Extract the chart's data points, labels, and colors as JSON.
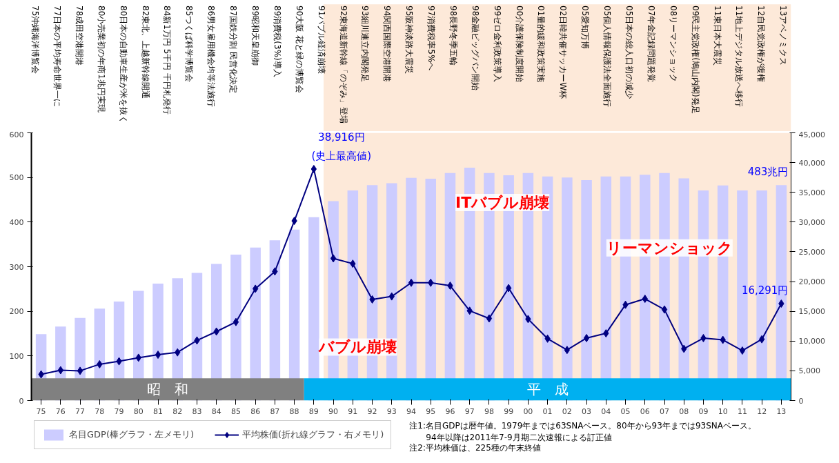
{
  "chart_data": {
    "type": "bar",
    "categories": [
      "75",
      "76",
      "77",
      "78",
      "79",
      "80",
      "81",
      "82",
      "83",
      "84",
      "85",
      "86",
      "87",
      "88",
      "89",
      "90",
      "91",
      "92",
      "93",
      "94",
      "95",
      "96",
      "97",
      "98",
      "99",
      "00",
      "01",
      "02",
      "03",
      "04",
      "05",
      "06",
      "07",
      "08",
      "09",
      "10",
      "11",
      "12",
      "13"
    ],
    "series": [
      {
        "name": "名目GDP(棒グラフ・左メモリ)",
        "color": "#ccccff",
        "values": [
          149,
          166,
          185,
          206,
          222,
          246,
          262,
          274,
          286,
          306,
          327,
          343,
          359,
          383,
          411,
          447,
          471,
          483,
          487,
          499,
          497,
          510,
          522,
          510,
          505,
          510,
          502,
          500,
          494,
          502,
          502,
          506,
          510,
          498,
          471,
          482,
          471,
          471,
          483
        ],
        "value_labels": [
          null,
          null,
          null,
          null,
          null,
          null,
          null,
          null,
          null,
          null,
          null,
          null,
          null,
          null,
          null,
          null,
          null,
          null,
          null,
          null,
          null,
          null,
          null,
          null,
          null,
          null,
          null,
          null,
          null,
          null,
          null,
          null,
          null,
          null,
          null,
          null,
          null,
          null,
          "483兆円"
        ]
      },
      {
        "name": "平均株価(折れ線グラフ・右メモリ)",
        "type": "line",
        "axis": "y2",
        "color": "#000080",
        "values": [
          4400,
          5100,
          5000,
          6100,
          6600,
          7200,
          7700,
          8100,
          10100,
          11600,
          13200,
          18800,
          21700,
          30200,
          38916,
          23900,
          23000,
          17000,
          17500,
          19800,
          19800,
          19300,
          15100,
          13800,
          18900,
          13700,
          10400,
          8500,
          10500,
          11300,
          16100,
          17100,
          15300,
          8700,
          10500,
          10200,
          8400,
          10300,
          16291
        ],
        "value_labels": [
          null,
          null,
          null,
          null,
          null,
          null,
          null,
          null,
          null,
          null,
          null,
          null,
          null,
          null,
          "38,916円\n(史上最高値)",
          null,
          null,
          null,
          null,
          null,
          null,
          null,
          null,
          null,
          null,
          null,
          null,
          null,
          null,
          null,
          null,
          null,
          null,
          null,
          null,
          null,
          null,
          null,
          "16,291円"
        ]
      }
    ],
    "ylim": [
      0,
      600
    ],
    "yticks": [
      0,
      100,
      200,
      300,
      400,
      500,
      600
    ],
    "y2lim": [
      0,
      45000
    ],
    "y2ticks": [
      0,
      {
        "value": 5000,
        "label": "5,000"
      },
      {
        "value": 10000,
        "label": "10,000"
      },
      {
        "value": 15000,
        "label": "15,000"
      },
      {
        "value": 20000,
        "label": "20,000"
      },
      {
        "value": 25000,
        "label": "25,000"
      },
      {
        "value": 30000,
        "label": "30,000"
      },
      {
        "value": 35000,
        "label": "35,000"
      },
      {
        "value": 40000,
        "label": "40,000"
      },
      {
        "value": 45000,
        "label": "45,000"
      }
    ],
    "marker": "diamond",
    "grid": false,
    "legend": "bottom left",
    "bands": [
      {
        "axis": "x",
        "from": "90",
        "to": "13",
        "color": "#fde9d9"
      },
      {
        "axis": "x",
        "from": "75",
        "to": "88",
        "label": "昭　和",
        "color": "#808080"
      },
      {
        "axis": "x",
        "from": "89",
        "to": "13",
        "label": "平　成",
        "color": "#00b0f0"
      }
    ],
    "annotations": [
      "75沖縄海洋博覧会",
      "77日本の平均寿命世界一に",
      "78成田空港開港",
      "80小売業初の年商1兆円実現",
      "80日本の自動車生産が米を抜く",
      "82東北、上越新幹線開通",
      "84新1万円 5千円 千円札発行",
      "85つくば科学博覧会",
      "86男女雇用機会均等法施行",
      "87国鉄分割 民営化決定",
      "89昭和天皇崩御",
      "89消費税(3%)導入",
      "90大阪 花と緑の博覧会",
      "91バブル経済崩壊",
      "92東海道新幹線「のぞみ」登場",
      "93細川連立内閣発足",
      "94関西国際空港開港",
      "95阪神淡路大震災",
      "97消費税率5%へ",
      "98長野冬季五輪",
      "98金融ビッグバン開始",
      "99ゼロ金利政策導入",
      "00介護保険制度開始",
      "01量的緩和政策実施",
      "02日韓共催サッカーW杯",
      "05愛知万博",
      "05個人情報保護法全面施行",
      "05日本の総人口初の減少",
      "07年金記録問題発覚",
      "08リーマンショック",
      "09民主党政権(鳩山内閣)発足",
      "11東日本大震災",
      "11地上デジタル放送へ移行",
      "12自民党政権が復権",
      "13アベノミクス",
      "バブル崩壊",
      "ITバブル崩壊",
      "リーマンショック",
      "注1:名目GDPは暦年値。1979年までは63SNAベース。80年から93年までは93SNAベース。\n　　94年以降は2011年7-9月期二次速報による訂正値",
      "注2:平均株価は、225種の年末終値"
    ]
  }
}
